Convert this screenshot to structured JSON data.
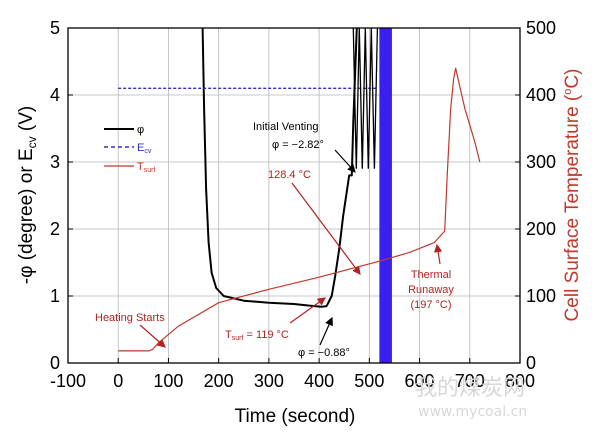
{
  "chart_data": {
    "type": "line",
    "xlabel": "Time (second)",
    "ylabel": "-φ (degree) or E",
    "ylabel_sub": "cv",
    "ylabel_tail": " (V)",
    "y2label": "Cell Surface Temperature (",
    "y2label_sup": "o",
    "y2label_tail": "C)",
    "xlim": [
      -100,
      800
    ],
    "ylim": [
      0,
      5
    ],
    "y2lim": [
      0,
      500
    ],
    "x_ticks": [
      -100,
      0,
      100,
      200,
      300,
      400,
      500,
      600,
      700,
      800
    ],
    "y_ticks": [
      0,
      1,
      2,
      3,
      4,
      5
    ],
    "y2_ticks": [
      0,
      100,
      200,
      300,
      400,
      500
    ],
    "grid": true,
    "legend_position": "top-left",
    "series": [
      {
        "name": "φ",
        "axis": "left",
        "color": "#000000",
        "x": [
          168,
          171,
          175,
          180,
          186,
          195,
          210,
          250,
          300,
          350,
          390,
          405,
          415,
          425,
          432,
          440,
          448,
          455,
          460,
          463,
          465,
          468,
          475
        ],
        "y": [
          5.0,
          3.8,
          2.6,
          1.8,
          1.35,
          1.12,
          1.0,
          0.93,
          0.9,
          0.88,
          0.85,
          0.84,
          0.85,
          1.0,
          1.3,
          1.7,
          2.2,
          2.55,
          2.8,
          2.8,
          2.8,
          3.6,
          5.0
        ]
      },
      {
        "name": "E",
        "name_sub": "cv",
        "axis": "left",
        "color": "#3030c0",
        "x": [
          0,
          515
        ],
        "y": [
          4.1,
          4.1
        ]
      },
      {
        "name": "T",
        "name_sub": "surf",
        "axis": "right",
        "color": "#c0392b",
        "x": [
          0,
          30,
          60,
          68,
          80,
          120,
          200,
          300,
          400,
          460,
          520,
          580,
          630,
          650,
          655,
          662,
          668,
          672,
          678,
          690,
          710,
          720
        ],
        "y": [
          18,
          18,
          18,
          20,
          30,
          55,
          90,
          110,
          128,
          140,
          152,
          165,
          180,
          197,
          280,
          380,
          425,
          440,
          420,
          380,
          330,
          300
        ]
      }
    ],
    "vent_band": {
      "x_start": 520,
      "x_end": 545,
      "color": "#3b1ff0"
    },
    "phi_noise": {
      "x_start": 468,
      "x_end": 520
    },
    "annotations": {
      "initial_venting": "Initial Venting",
      "phi_vent": "φ = −2.82°",
      "temp_vent": "128.4 °C",
      "thermal_runaway_1": "Thermal",
      "thermal_runaway_2": "Runaway",
      "thermal_runaway_3": "(197 °C)",
      "heating_starts": "Heating Starts",
      "tsurf_min_pre": "T",
      "tsurf_min_sub": "surf",
      "tsurf_min_post": " = 119 °C",
      "phi_min": "φ = −0.88°"
    }
  },
  "watermark": {
    "text_cn": "我的煤炭网",
    "text_url": "www.mycoal.cn"
  }
}
